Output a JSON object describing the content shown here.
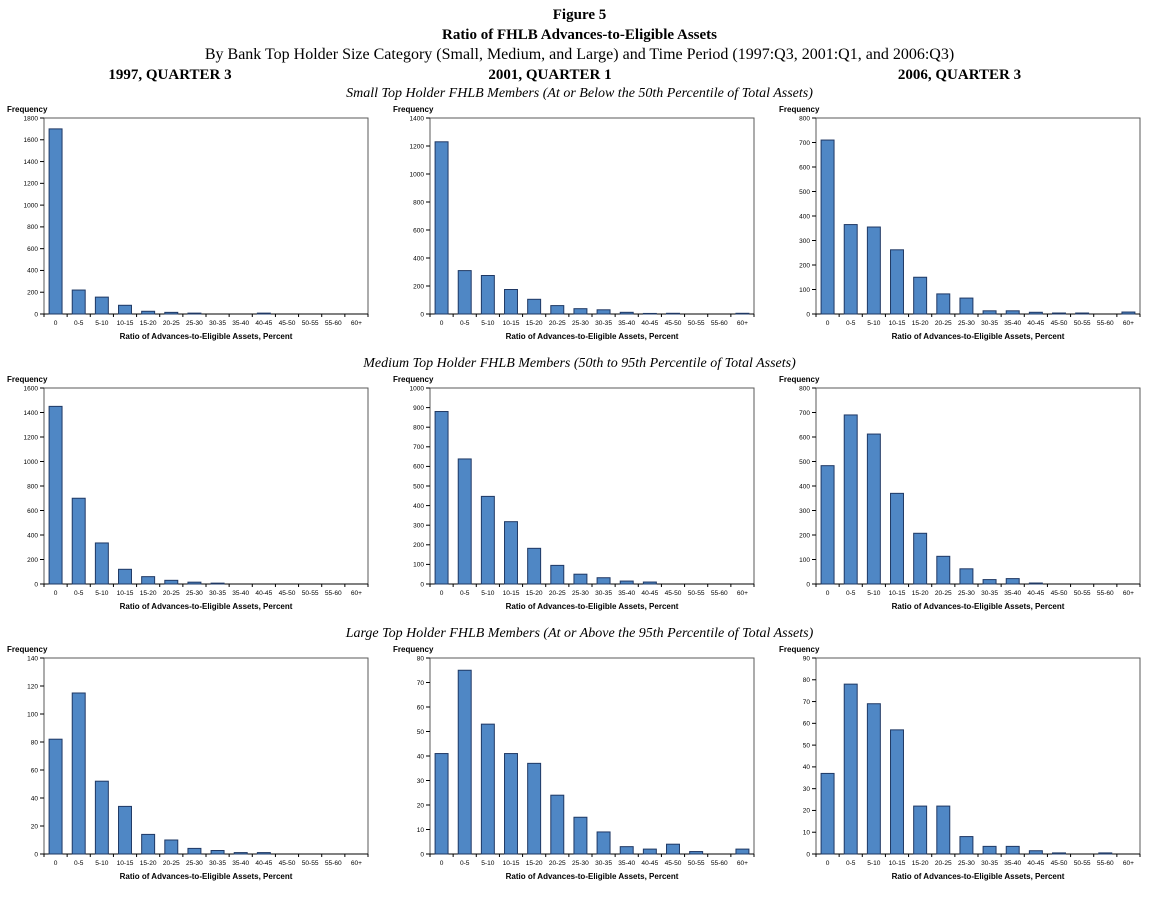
{
  "header": {
    "figure_label": "Figure 5",
    "title": "Ratio of FHLB Advances-to-Eligible Assets",
    "subtitle": "By Bank Top Holder Size Category (Small, Medium, and Large) and Time Period (1997:Q3, 2001:Q1, and 2006:Q3)",
    "columns": [
      "1997, QUARTER 3",
      "2001, QUARTER 1",
      "2006, QUARTER 3"
    ]
  },
  "rows": [
    {
      "subtitle": "Small Top Holder FHLB Members (At or Below the 50th Percentile of Total Assets)"
    },
    {
      "subtitle": "Medium Top Holder FHLB Members (50th to 95th Percentile of Total Assets)"
    },
    {
      "subtitle": "Large Top Holder FHLB Members (At or Above the 95th Percentile of Total Assets)"
    }
  ],
  "colors": {
    "bar_fill": "#4F87C5",
    "bar_stroke": "#1F3864",
    "plot_border": "#5a5a5a",
    "axis": "#000000"
  },
  "chart_shared": {
    "type": "bar",
    "ylabel": "Frequency",
    "xlabel": "Ratio of Advances-to-Eligible Assets, Percent",
    "categories": [
      "0",
      "0-5",
      "5-10",
      "10-15",
      "15-20",
      "20-25",
      "25-30",
      "30-35",
      "35-40",
      "40-45",
      "45-50",
      "50-55",
      "55-60",
      "60+"
    ],
    "grid": false,
    "legend": false
  },
  "chart_data": [
    {
      "id": "small-1997q3",
      "row": 0,
      "column": 0,
      "ylim": [
        0,
        1800
      ],
      "ystep": 200,
      "values": [
        1700,
        220,
        155,
        80,
        25,
        15,
        8,
        0,
        0,
        8,
        0,
        0,
        0,
        0
      ]
    },
    {
      "id": "small-2001q1",
      "row": 0,
      "column": 1,
      "ylim": [
        0,
        1400
      ],
      "ystep": 200,
      "values": [
        1230,
        310,
        275,
        175,
        105,
        60,
        38,
        30,
        12,
        4,
        5,
        0,
        0,
        5
      ]
    },
    {
      "id": "small-2006q3",
      "row": 0,
      "column": 2,
      "ylim": [
        0,
        800
      ],
      "ystep": 100,
      "values": [
        710,
        365,
        355,
        262,
        150,
        82,
        65,
        13,
        13,
        7,
        4,
        4,
        0,
        8
      ]
    },
    {
      "id": "medium-1997q3",
      "row": 1,
      "column": 0,
      "ylim": [
        0,
        1600
      ],
      "ystep": 200,
      "values": [
        1450,
        700,
        335,
        120,
        60,
        30,
        15,
        7,
        0,
        0,
        0,
        0,
        0,
        0
      ]
    },
    {
      "id": "medium-2001q1",
      "row": 1,
      "column": 1,
      "ylim": [
        0,
        1000
      ],
      "ystep": 100,
      "values": [
        880,
        638,
        447,
        318,
        182,
        95,
        50,
        32,
        15,
        10,
        0,
        0,
        0,
        0
      ]
    },
    {
      "id": "medium-2006q3",
      "row": 1,
      "column": 2,
      "ylim": [
        0,
        800
      ],
      "ystep": 100,
      "values": [
        483,
        690,
        612,
        370,
        207,
        113,
        62,
        18,
        22,
        4,
        0,
        0,
        0,
        0
      ]
    },
    {
      "id": "large-1997q3",
      "row": 2,
      "column": 0,
      "ylim": [
        0,
        140
      ],
      "ystep": 20,
      "values": [
        82,
        115,
        52,
        34,
        14,
        10,
        4,
        2.5,
        1,
        1,
        0,
        0,
        0,
        0
      ]
    },
    {
      "id": "large-2001q1",
      "row": 2,
      "column": 1,
      "ylim": [
        0,
        80
      ],
      "ystep": 10,
      "values": [
        41,
        75,
        53,
        41,
        37,
        24,
        15,
        9,
        3,
        2,
        4,
        1,
        0,
        2
      ]
    },
    {
      "id": "large-2006q3",
      "row": 2,
      "column": 2,
      "ylim": [
        0,
        90
      ],
      "ystep": 10,
      "values": [
        37,
        78,
        69,
        57,
        22,
        22,
        8,
        3.5,
        3.5,
        1.5,
        0.5,
        0,
        0.5,
        0
      ]
    }
  ]
}
